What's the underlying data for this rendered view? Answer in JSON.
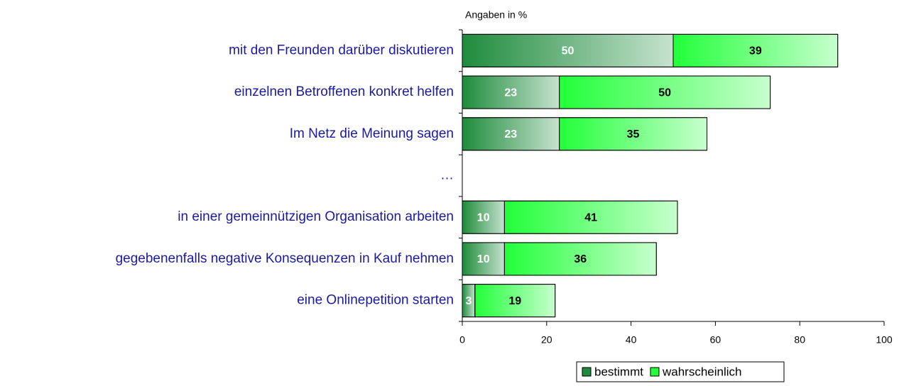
{
  "chart_data": {
    "type": "stacked-barh",
    "subtitle": "Angaben in %",
    "categories": [
      "mit den Freunden darüber diskutieren",
      "einzelnen Betroffenen konkret helfen",
      "Im Netz die Meinung sagen",
      "…",
      "in einer gemeinnützigen Organisation arbeiten",
      "gegebenenfalls negative Konsequenzen in Kauf nehmen",
      "eine Onlinepetition starten"
    ],
    "series": [
      {
        "name": "bestimmt",
        "color": "#1e8c3c",
        "label_color": "#ffffff",
        "values": [
          50,
          23,
          23,
          null,
          10,
          10,
          3
        ]
      },
      {
        "name": "wahrscheinlich",
        "color": "#22ff3a",
        "label_color": "#000000",
        "values": [
          39,
          50,
          35,
          null,
          41,
          36,
          19
        ]
      }
    ],
    "xlim": [
      0,
      100
    ],
    "xticks": [
      0,
      20,
      40,
      60,
      80,
      100
    ],
    "legend": "bottom"
  }
}
